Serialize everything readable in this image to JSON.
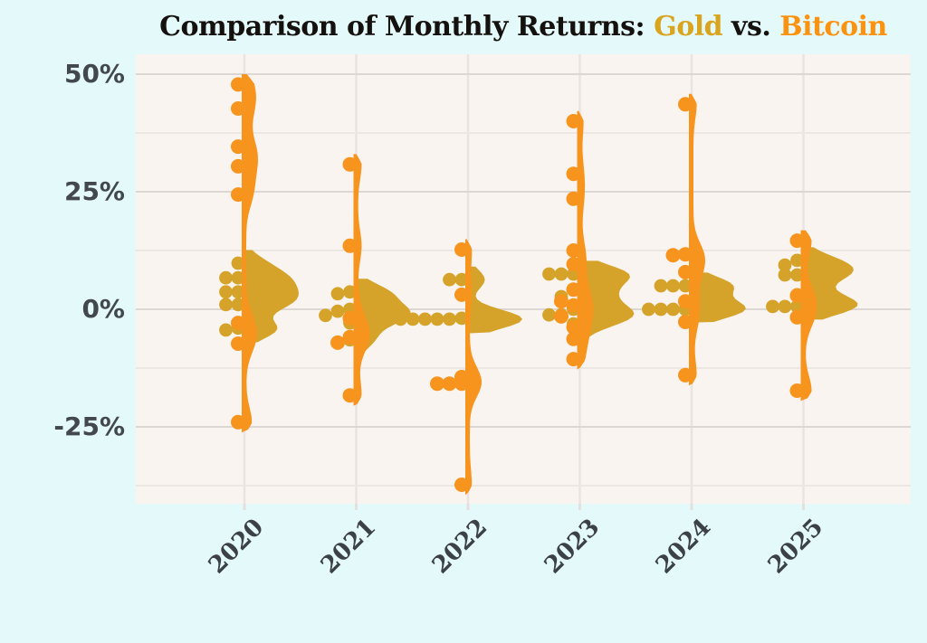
{
  "title": {
    "prefix": "Comparison of Monthly Returns: ",
    "gold": "Gold",
    "vs": " vs. ",
    "bitcoin": "Bitcoin"
  },
  "colors": {
    "page_bg": "#e4f9f9",
    "plot_bg": "#faf4f0",
    "grid_major": "#ddd7d4",
    "grid_minor": "#ede7e4",
    "grid_vertical": "#e9e4e1",
    "tick_stub": "#e5e0dd",
    "gold": "#D5A32A",
    "bitcoin": "#F7941E",
    "title_gold": "#D9A41E",
    "title_bitcoin": "#FB9310",
    "axis_text": "#42484d"
  },
  "chart_data": {
    "type": "raincloud (beeswarm dot strip + right-facing half violin) comparing two series per year",
    "title": "Comparison of Monthly Returns: Gold vs. Bitcoin",
    "categories": [
      "2020",
      "2021",
      "2022",
      "2023",
      "2024",
      "2025"
    ],
    "ytick_labels": [
      "50%",
      "25%",
      "0%",
      "-25%"
    ],
    "ytick_values": [
      50,
      25,
      0,
      -25
    ],
    "grid_values": [
      50,
      37.5,
      25,
      12.5,
      0,
      -12.5,
      -25,
      -37.5
    ],
    "major_grid_values": [
      50,
      25,
      0,
      -25
    ],
    "ylim": [
      -41,
      54
    ],
    "grid": "horizontal lines every 12.5% plus one vertical line per year; no legend (series named in title)",
    "units": "monthly return, percent",
    "series": [
      {
        "name": "Gold",
        "color": "#D5A32A",
        "points_pct_by_year": {
          "2020": [
            9.8,
            6.7,
            6.7,
            3.7,
            3.7,
            1.0,
            1.0,
            -4.0,
            -4.4
          ],
          "2021": [
            3.7,
            3.3,
            0.0,
            -0.4,
            -1.3,
            -2.9,
            -6.5
          ],
          "2022": [
            6.3,
            6.3,
            -1.9,
            -2.1,
            -2.1,
            -2.1,
            -2.1,
            -2.1,
            -2.3
          ],
          "2023": [
            7.5,
            7.5,
            7.5,
            4.2,
            2.7,
            0.0,
            -1.2,
            -1.2,
            -3.1
          ],
          "2024": [
            5.0,
            5.0,
            5.0,
            0.0,
            0.0,
            0.0,
            0.0
          ],
          "2025": [
            10.4,
            9.4,
            7.3,
            7.3,
            3.1,
            0.6,
            0.6,
            0.6
          ]
        }
      },
      {
        "name": "Bitcoin",
        "color": "#F7941E",
        "points_pct_by_year": {
          "2020": [
            47.8,
            42.7,
            34.6,
            30.4,
            24.4,
            -2.9,
            -7.3,
            -24.0
          ],
          "2021": [
            30.8,
            13.5,
            -1.9,
            -5.9,
            -7.1,
            -18.3
          ],
          "2022": [
            12.7,
            3.1,
            -14.4,
            -15.8,
            -15.8,
            -15.8,
            -37.3
          ],
          "2023": [
            40.0,
            28.8,
            23.5,
            12.5,
            9.6,
            4.2,
            1.7,
            0.8,
            -1.5,
            -3.8,
            -6.3,
            -10.6
          ],
          "2024": [
            43.6,
            11.7,
            11.5,
            7.9,
            1.7,
            -2.7,
            -14.0
          ],
          "2025": [
            14.6,
            2.9,
            -1.7,
            -17.3
          ]
        }
      }
    ]
  }
}
